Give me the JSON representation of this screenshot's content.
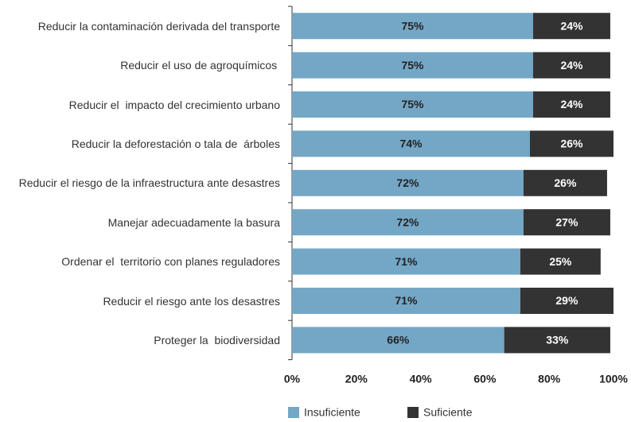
{
  "chart_data": {
    "type": "stacked-barh",
    "categories": [
      "Reducir la contaminación derivada del transporte",
      "Reducir el uso de agroquímicos ",
      "Reducir el  impacto del crecimiento urbano",
      "Reducir la deforestación o tala de  árboles",
      "Reducir el riesgo de la infraestructura ante desastres",
      "Manejar adecuadamente la basura",
      "Ordenar el  territorio con planes reguladores",
      "Reducir el riesgo ante los desastres",
      "Proteger la  biodiversidad"
    ],
    "series": [
      {
        "name": "Insuficiente",
        "color": "#74a7c6",
        "values": [
          75,
          75,
          75,
          74,
          72,
          72,
          71,
          71,
          66
        ],
        "value_labels": [
          "75%",
          "75%",
          "75%",
          "74%",
          "72%",
          "72%",
          "71%",
          "71%",
          "66%"
        ]
      },
      {
        "name": "Suficiente",
        "color": "#333333",
        "values": [
          24,
          24,
          24,
          26,
          26,
          27,
          25,
          29,
          33
        ],
        "value_labels": [
          "24%",
          "24%",
          "24%",
          "26%",
          "26%",
          "27%",
          "25%",
          "29%",
          "33%"
        ]
      }
    ],
    "xlim": [
      0,
      100
    ],
    "xticks": [
      {
        "value": 0,
        "label": "0%"
      },
      {
        "value": 20,
        "label": "20%"
      },
      {
        "value": 40,
        "label": "40%"
      },
      {
        "value": 60,
        "label": "60%"
      },
      {
        "value": 80,
        "label": "80%"
      },
      {
        "value": 100,
        "label": "100%"
      }
    ],
    "legend": "bottom"
  }
}
